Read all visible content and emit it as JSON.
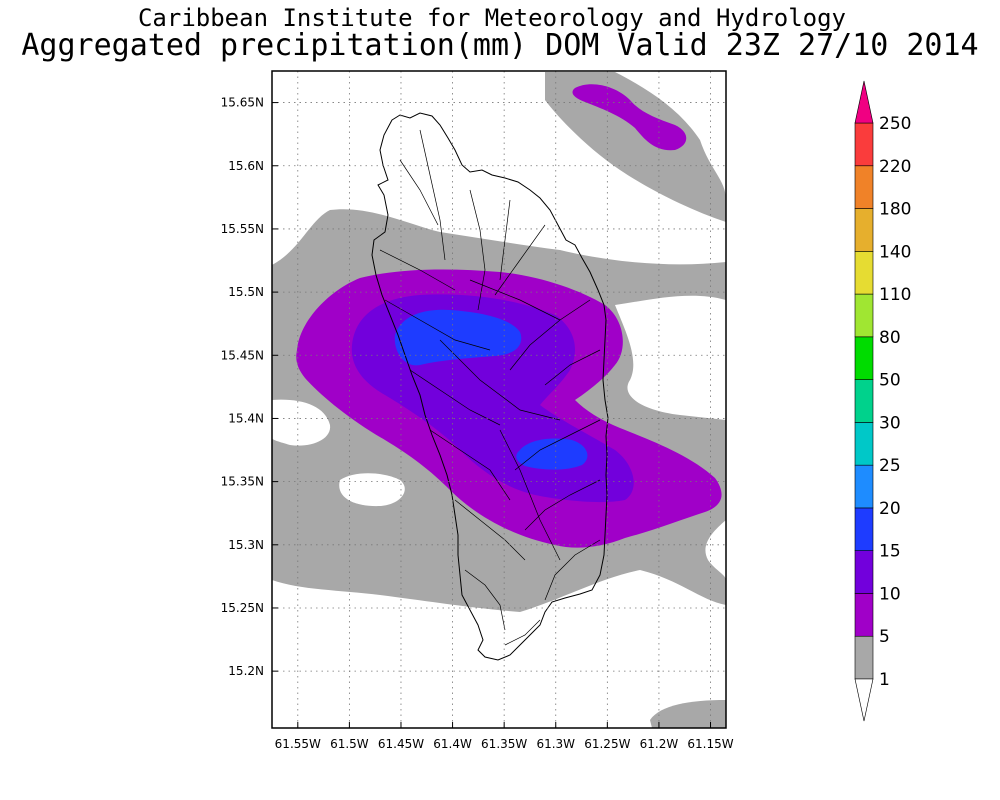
{
  "header": {
    "line1": "Caribbean Institute for Meteorology and Hydrology",
    "line2": "Aggregated precipitation(mm) DOM Valid 23Z 27/10 2014"
  },
  "map": {
    "lon_range": [
      -61.575,
      -61.135
    ],
    "lat_range": [
      15.155,
      15.675
    ],
    "x_ticks": [
      "61.55W",
      "61.5W",
      "61.45W",
      "61.4W",
      "61.35W",
      "61.3W",
      "61.25W",
      "61.2W",
      "61.15W"
    ],
    "y_ticks": [
      "15.65N",
      "15.6N",
      "15.55N",
      "15.5N",
      "15.45N",
      "15.4N",
      "15.35N",
      "15.3N",
      "15.25N",
      "15.2N"
    ],
    "grid": "dotted"
  },
  "colorbar": {
    "levels": [
      "1",
      "5",
      "10",
      "15",
      "20",
      "25",
      "30",
      "50",
      "80",
      "110",
      "140",
      "180",
      "220",
      "250"
    ],
    "colors": [
      "#a8a8a8",
      "#a000c8",
      "#7200dc",
      "#1e3cff",
      "#1e8cff",
      "#00c8c8",
      "#00d28c",
      "#00dc00",
      "#a0e632",
      "#e6dc32",
      "#e6af2d",
      "#f08228",
      "#fa3c3c",
      "#f00082"
    ]
  }
}
